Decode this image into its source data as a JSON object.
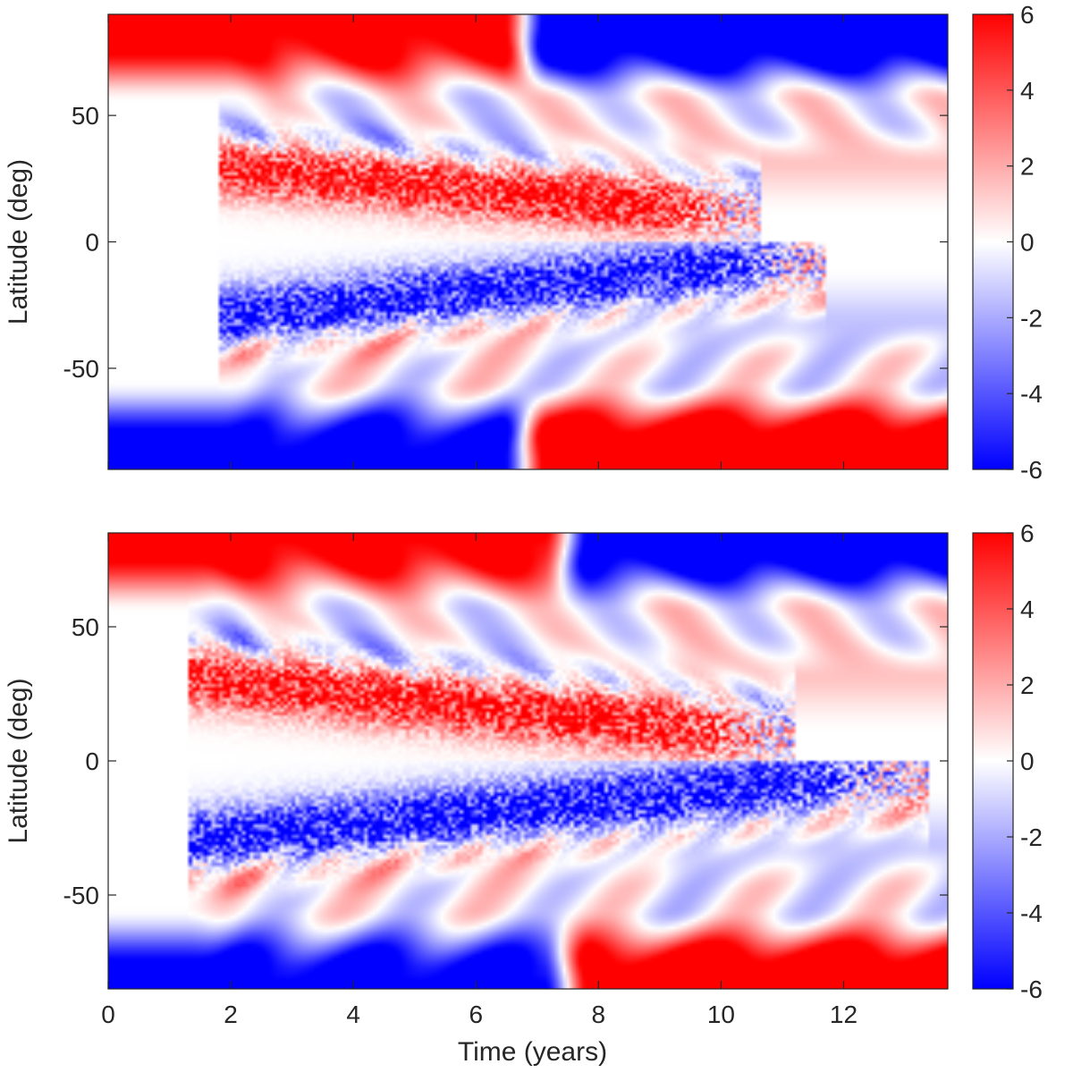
{
  "chart_data": [
    {
      "type": "heatmap",
      "title": "",
      "xlabel": "",
      "ylabel": "Latitude (deg)",
      "xlim": [
        0,
        13.7
      ],
      "ylim": [
        -90,
        90
      ],
      "xticks": [],
      "xtick_labels": [],
      "yticks": [
        50,
        0,
        -50
      ],
      "ytick_labels": [
        "50",
        "0",
        "-50"
      ],
      "colorbar": {
        "min": -6,
        "max": 6,
        "ticks": [
          6,
          4,
          2,
          0,
          -2,
          -4,
          -6
        ],
        "tick_labels": [
          "6",
          "4",
          "2",
          "0",
          "-2",
          "-4",
          "-6"
        ],
        "colors": {
          "low": "#0000ff",
          "mid": "#ffffff",
          "high": "#ff0000"
        }
      },
      "features": {
        "polar_reversal_year": 6.8,
        "cycle_start_year": 1.8,
        "northern_band": {
          "start_lat": 30,
          "end_lat": 12,
          "end_year": 10.0,
          "sign": "positive"
        },
        "southern_band": {
          "start_lat": -30,
          "end_lat": -8,
          "end_year": 11.0,
          "sign": "negative"
        }
      }
    },
    {
      "type": "heatmap",
      "title": "",
      "xlabel": "Time (years)",
      "ylabel": "Latitude (deg)",
      "xlim": [
        0,
        13.7
      ],
      "ylim": [
        -85,
        85
      ],
      "xticks": [
        0,
        2,
        4,
        6,
        8,
        10,
        12
      ],
      "xtick_labels": [
        "0",
        "2",
        "4",
        "6",
        "8",
        "10",
        "12"
      ],
      "yticks": [
        50,
        0,
        -50
      ],
      "ytick_labels": [
        "50",
        "0",
        "-50"
      ],
      "colorbar": {
        "min": -6,
        "max": 6,
        "ticks": [
          6,
          4,
          2,
          0,
          -2,
          -4,
          -6
        ],
        "tick_labels": [
          "6",
          "4",
          "2",
          "0",
          "-2",
          "-4",
          "-6"
        ],
        "colors": {
          "low": "#0000ff",
          "mid": "#ffffff",
          "high": "#ff0000"
        }
      },
      "features": {
        "polar_reversal_year": 7.5,
        "cycle_start_year": 1.3,
        "northern_band": {
          "start_lat": 32,
          "end_lat": 10,
          "end_year": 10.5,
          "sign": "positive"
        },
        "southern_band": {
          "start_lat": -30,
          "end_lat": -6,
          "end_year": 12.5,
          "sign": "negative"
        }
      }
    }
  ]
}
